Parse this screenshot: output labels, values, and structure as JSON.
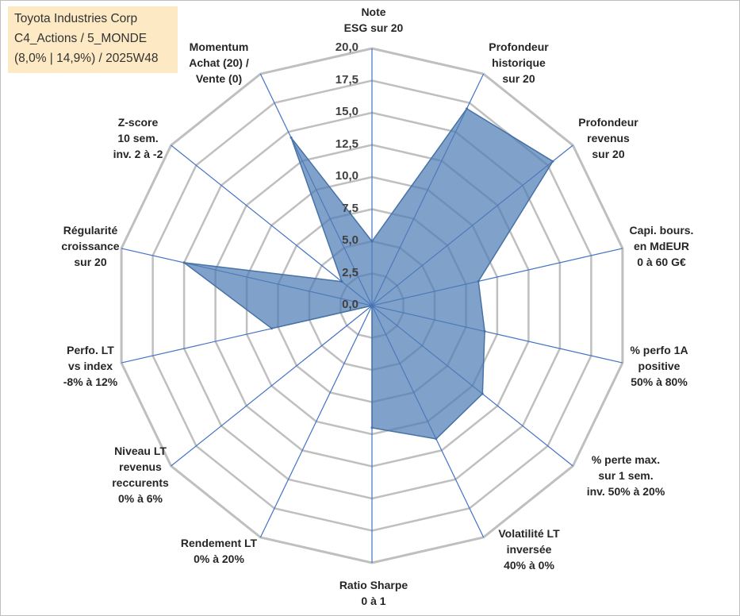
{
  "info_box": {
    "line1": "Toyota Industries Corp",
    "line2": "C4_Actions / 5_MONDE",
    "line3": "(8,0% | 14,9%) / 2025W48"
  },
  "colors": {
    "fill": "#4f7db5",
    "stroke": "#4672a6",
    "grid": "#bfbfbf",
    "spoke": "#4472c4",
    "box": "#fde9c4"
  },
  "chart_data": {
    "type": "radar",
    "title": "",
    "rmin": 0,
    "rmax": 20,
    "tick_step": 2.5,
    "tick_labels": [
      "0,0",
      "2,5",
      "5,0",
      "7,5",
      "10,0",
      "12,5",
      "15,0",
      "17,5",
      "20,0"
    ],
    "axes": [
      {
        "lines": [
          "Note",
          "ESG sur 20"
        ],
        "value": 5.0
      },
      {
        "lines": [
          "Profondeur",
          "historique",
          "sur 20"
        ],
        "value": 17.0
      },
      {
        "lines": [
          "Profondeur",
          "revenus",
          "sur 20"
        ],
        "value": 18.0
      },
      {
        "lines": [
          "Capi. bours.",
          "en MdEUR",
          "0 à 60 G€"
        ],
        "value": 8.5
      },
      {
        "lines": [
          "% perfo 1A",
          "positive",
          "50% à 80%"
        ],
        "value": 9.0
      },
      {
        "lines": [
          "% perte max.",
          "sur 1 sem.",
          "inv. 50% à 20%"
        ],
        "value": 11.0
      },
      {
        "lines": [
          "Volatilité LT",
          "inversée",
          "40% à 0%"
        ],
        "value": 11.5
      },
      {
        "lines": [
          "Ratio Sharpe",
          "0 à 1"
        ],
        "value": 9.5
      },
      {
        "lines": [
          "Rendement LT",
          "0% à 20%"
        ],
        "value": 0.0
      },
      {
        "lines": [
          "Niveau LT",
          "revenus",
          "reccurents",
          "0% à 6%"
        ],
        "value": 0.0
      },
      {
        "lines": [
          "Perfo. LT",
          "vs index",
          "-8% à 12%"
        ],
        "value": 8.0
      },
      {
        "lines": [
          "Régularité",
          "croissance",
          "sur 20"
        ],
        "value": 15.0
      },
      {
        "lines": [
          "Z-score",
          "10 sem.",
          "inv. 2 à -2"
        ],
        "value": 3.0
      },
      {
        "lines": [
          "Momentum",
          "Achat (20) /",
          "Vente (0)"
        ],
        "value": 14.5
      }
    ]
  }
}
